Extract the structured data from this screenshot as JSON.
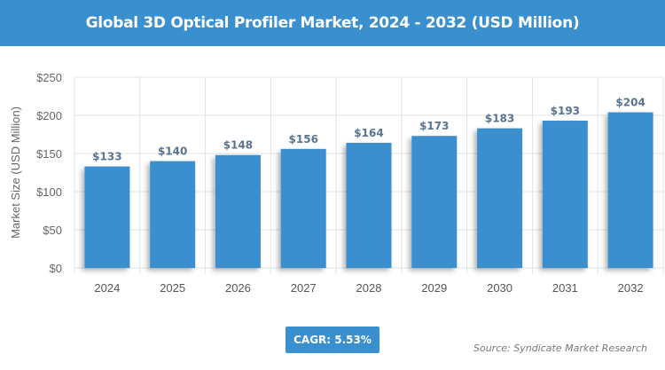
{
  "header": {
    "title": "Global 3D Optical Profiler Market, 2024 - 2032 (USD Million)"
  },
  "chart_data": {
    "type": "bar",
    "title": "Global 3D Optical Profiler Market, 2024 - 2032 (USD Million)",
    "xlabel": "",
    "ylabel": "Market Size (USD Million)",
    "categories": [
      "2024",
      "2025",
      "2026",
      "2027",
      "2028",
      "2029",
      "2030",
      "2031",
      "2032"
    ],
    "values": [
      133,
      140,
      148,
      156,
      164,
      173,
      183,
      193,
      204
    ],
    "data_labels": [
      "$133",
      "$140",
      "$148",
      "$156",
      "$164",
      "$173",
      "$183",
      "$193",
      "$204"
    ],
    "ylim": [
      0,
      250
    ],
    "yticks": [
      0,
      50,
      100,
      150,
      200,
      250
    ],
    "ytick_labels": [
      "$0",
      "$50",
      "$100",
      "$150",
      "$200",
      "$250"
    ],
    "grid": true,
    "bar_color": "#3a8fcf"
  },
  "footer": {
    "cagr": "CAGR: 5.53%",
    "source": "Source: Syndicate Market Research"
  }
}
